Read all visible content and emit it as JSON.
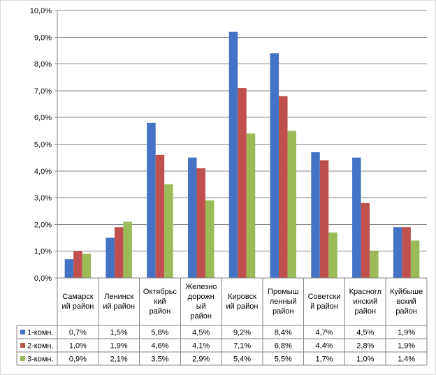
{
  "chart_data": {
    "type": "bar",
    "categories": [
      [
        "Самарск",
        "ий район"
      ],
      [
        "Ленинск",
        "ий район"
      ],
      [
        "Октябрьс",
        "кий",
        "район"
      ],
      [
        "Железно",
        "дорожн",
        "ый",
        "район"
      ],
      [
        "Кировск",
        "ий район"
      ],
      [
        "Промыш",
        "ленный",
        "район"
      ],
      [
        "Советски",
        "й район"
      ],
      [
        "Красногл",
        "инский",
        "район"
      ],
      [
        "Куйбыше",
        "вский",
        "район"
      ]
    ],
    "series": [
      {
        "name": "1-комн.",
        "color": "#4472c4",
        "values": [
          0.7,
          1.5,
          5.8,
          4.5,
          9.2,
          8.4,
          4.7,
          4.5,
          1.9
        ],
        "labels": [
          "0,7%",
          "1,5%",
          "5,8%",
          "4,5%",
          "9,2%",
          "8,4%",
          "4,7%",
          "4,5%",
          "1,9%"
        ]
      },
      {
        "name": "2-комн.",
        "color": "#c0504d",
        "values": [
          1.0,
          1.9,
          4.6,
          4.1,
          7.1,
          6.8,
          4.4,
          2.8,
          1.9
        ],
        "labels": [
          "1,0%",
          "1,9%",
          "4,6%",
          "4,1%",
          "7,1%",
          "6,8%",
          "4,4%",
          "2,8%",
          "1,9%"
        ]
      },
      {
        "name": "3-комн.",
        "color": "#9bbb59",
        "values": [
          0.9,
          2.1,
          3.5,
          2.9,
          5.4,
          5.5,
          1.7,
          1.0,
          1.4
        ],
        "labels": [
          "0,9%",
          "2,1%",
          "3,5%",
          "2,9%",
          "5,4%",
          "5,5%",
          "1,7%",
          "1,0%",
          "1,4%"
        ]
      }
    ],
    "ylim": [
      0,
      10
    ],
    "yticks": [
      "0,0%",
      "1,0%",
      "2,0%",
      "3,0%",
      "4,0%",
      "5,0%",
      "6,0%",
      "7,0%",
      "8,0%",
      "9,0%",
      "10,0%"
    ],
    "grid": true,
    "legend": "data table below chart"
  }
}
